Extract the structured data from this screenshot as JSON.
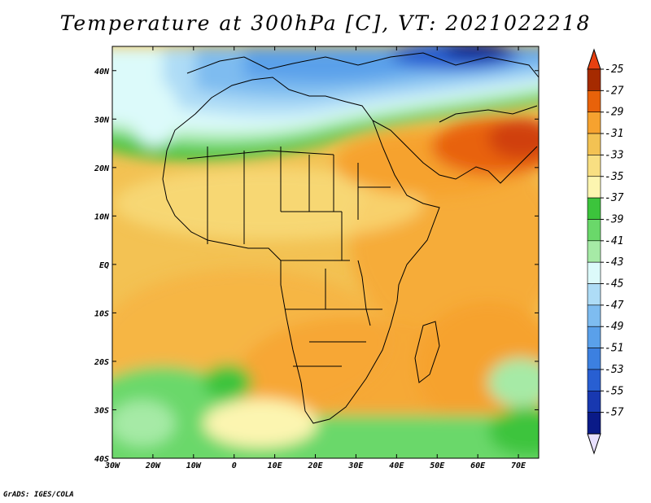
{
  "title": "Temperature at 300hPa [C], VT: 2021022218",
  "credit": "GrADS: IGES/COLA",
  "map": {
    "lat_labels": [
      "40N",
      "30N",
      "20N",
      "10N",
      "EQ",
      "10S",
      "20S",
      "30S",
      "40S"
    ],
    "lon_labels": [
      "30W",
      "20W",
      "10W",
      "0",
      "10E",
      "20E",
      "30E",
      "40E",
      "50E",
      "60E",
      "70E"
    ],
    "lat_range": [
      -40,
      45
    ],
    "lon_range": [
      -30,
      75
    ]
  },
  "colorbar": {
    "labels": [
      "-25",
      "-27",
      "-29",
      "-31",
      "-33",
      "-35",
      "-37",
      "-39",
      "-41",
      "-43",
      "-45",
      "-47",
      "-49",
      "-51",
      "-53",
      "-55",
      "-57"
    ],
    "colors": [
      "#a52a00",
      "#e8620a",
      "#f6a22f",
      "#f3c253",
      "#f8df82",
      "#fcf5b0",
      "#3cc43c",
      "#6ad86a",
      "#a6eaa6",
      "#dcfafa",
      "#aedcf6",
      "#7ebcf0",
      "#5aa0ea",
      "#3c80e0",
      "#285fd2",
      "#1838b0",
      "#0a1a88"
    ],
    "top_color": "#e84010",
    "bottom_color": "#e8e0ff"
  }
}
